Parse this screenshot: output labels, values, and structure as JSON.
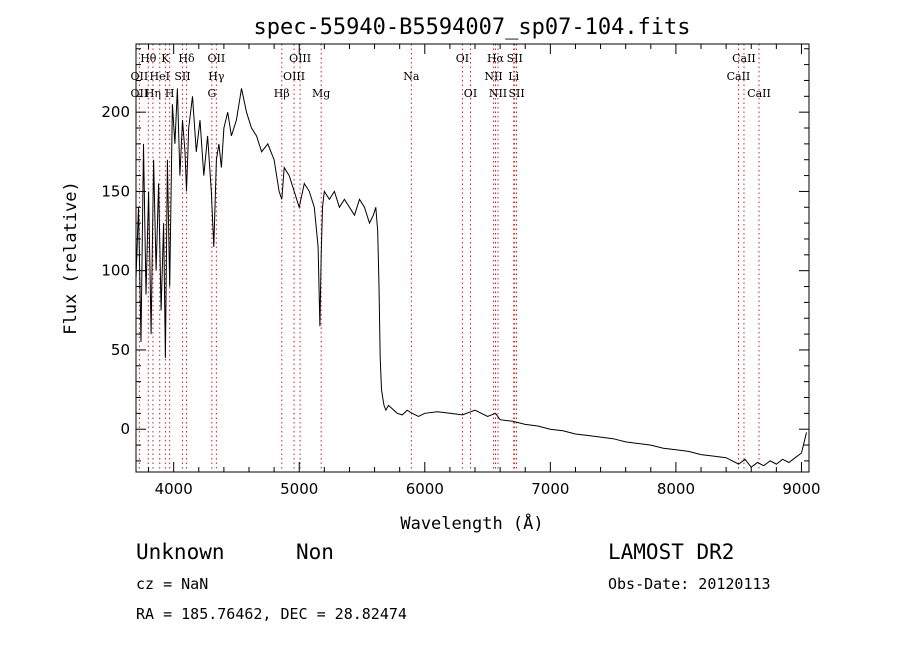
{
  "chart_data": {
    "type": "line",
    "title": "spec-55940-B5594007_sp07-104.fits",
    "xlabel": "Wavelength (Å)",
    "ylabel": "Flux (relative)",
    "xlim": [
      3700,
      9060
    ],
    "ylim": [
      -27,
      243
    ],
    "x_ticks": [
      4000,
      5000,
      6000,
      7000,
      8000,
      9000
    ],
    "y_ticks": [
      0,
      50,
      100,
      150,
      200
    ],
    "x_tick_labels": [
      "4000",
      "5000",
      "6000",
      "7000",
      "8000",
      "9000"
    ],
    "y_tick_labels": [
      "0",
      "50",
      "100",
      "150",
      "200"
    ],
    "grid": false,
    "series": [
      {
        "color": "#000000",
        "x": [
          3700,
          3720,
          3740,
          3760,
          3780,
          3800,
          3820,
          3840,
          3860,
          3880,
          3900,
          3920,
          3934,
          3950,
          3968,
          3990,
          4010,
          4030,
          4050,
          4070,
          4090,
          4102,
          4120,
          4150,
          4180,
          4210,
          4240,
          4270,
          4300,
          4320,
          4340,
          4360,
          4380,
          4400,
          4430,
          4460,
          4500,
          4540,
          4580,
          4620,
          4660,
          4700,
          4750,
          4800,
          4840,
          4861,
          4880,
          4920,
          4960,
          5000,
          5040,
          5080,
          5120,
          5150,
          5165,
          5175,
          5185,
          5200,
          5240,
          5280,
          5320,
          5360,
          5400,
          5440,
          5480,
          5520,
          5560,
          5590,
          5610,
          5625,
          5635,
          5645,
          5655,
          5665,
          5675,
          5690,
          5710,
          5740,
          5780,
          5820,
          5860,
          5900,
          5950,
          6000,
          6100,
          6200,
          6300,
          6400,
          6500,
          6563,
          6600,
          6700,
          6800,
          6900,
          7000,
          7100,
          7200,
          7300,
          7400,
          7500,
          7600,
          7700,
          7800,
          7900,
          8000,
          8100,
          8200,
          8300,
          8400,
          8450,
          8500,
          8550,
          8600,
          8650,
          8700,
          8750,
          8800,
          8850,
          8900,
          8950,
          9000,
          9040
        ],
        "y": [
          95,
          140,
          55,
          180,
          85,
          150,
          60,
          170,
          100,
          155,
          75,
          130,
          45,
          170,
          90,
          205,
          180,
          215,
          160,
          195,
          175,
          150,
          190,
          210,
          175,
          195,
          160,
          185,
          150,
          115,
          170,
          180,
          165,
          190,
          200,
          185,
          195,
          215,
          200,
          190,
          185,
          175,
          180,
          170,
          150,
          145,
          165,
          160,
          150,
          140,
          155,
          150,
          140,
          115,
          65,
          110,
          140,
          150,
          145,
          150,
          140,
          145,
          140,
          135,
          145,
          140,
          130,
          135,
          140,
          125,
          90,
          45,
          25,
          20,
          15,
          12,
          15,
          13,
          10,
          9,
          12,
          10,
          8,
          10,
          11,
          10,
          9,
          12,
          8,
          10,
          6,
          5,
          3,
          2,
          0,
          -1,
          -3,
          -4,
          -5,
          -6,
          -8,
          -9,
          -10,
          -12,
          -13,
          -14,
          -16,
          -17,
          -18,
          -20,
          -22,
          -19,
          -24,
          -21,
          -23,
          -20,
          -22,
          -19,
          -21,
          -18,
          -15,
          -2
        ]
      }
    ],
    "line_labels": [
      {
        "label": "Hθ",
        "x": 3798,
        "row": 0
      },
      {
        "label": "K",
        "x": 3934,
        "row": 0
      },
      {
        "label": "Hδ",
        "x": 4102,
        "row": 0
      },
      {
        "label": "OII",
        "x": 4340,
        "row": 0
      },
      {
        "label": "OIII",
        "x": 5007,
        "row": 0
      },
      {
        "label": "OI",
        "x": 6300,
        "row": 0
      },
      {
        "label": "Hα",
        "x": 6563,
        "row": 0
      },
      {
        "label": "SII",
        "x": 6716,
        "row": 0
      },
      {
        "label": "CaII",
        "x": 8542,
        "row": 0
      },
      {
        "label": "OII",
        "x": 3727,
        "row": 1
      },
      {
        "label": "HeI",
        "x": 3889,
        "row": 1
      },
      {
        "label": "SII",
        "x": 4070,
        "row": 1
      },
      {
        "label": "Hγ",
        "x": 4340,
        "row": 1
      },
      {
        "label": "OIII",
        "x": 4959,
        "row": 1
      },
      {
        "label": "Na",
        "x": 5893,
        "row": 1
      },
      {
        "label": "NII",
        "x": 6548,
        "row": 1
      },
      {
        "label": "Li",
        "x": 6708,
        "row": 1
      },
      {
        "label": "CaII",
        "x": 8498,
        "row": 1
      },
      {
        "label": "OII",
        "x": 3727,
        "row": 2
      },
      {
        "label": "Hη",
        "x": 3835,
        "row": 2
      },
      {
        "label": "H",
        "x": 3968,
        "row": 2
      },
      {
        "label": "G",
        "x": 4304,
        "row": 2
      },
      {
        "label": "Hβ",
        "x": 4861,
        "row": 2
      },
      {
        "label": "Mg",
        "x": 5175,
        "row": 2
      },
      {
        "label": "OI",
        "x": 6364,
        "row": 2
      },
      {
        "label": "NII",
        "x": 6583,
        "row": 2
      },
      {
        "label": "SII",
        "x": 6731,
        "row": 2
      },
      {
        "label": "CaII",
        "x": 8662,
        "row": 2
      }
    ],
    "line_markers": [
      3727,
      3798,
      3835,
      3889,
      3934,
      3968,
      4070,
      4102,
      4304,
      4340,
      4861,
      4959,
      5007,
      5175,
      5893,
      6300,
      6364,
      6548,
      6563,
      6583,
      6708,
      6716,
      6731,
      8498,
      8542,
      8662
    ],
    "line_marker_color": "#d02020"
  },
  "info": {
    "class_text": "Unknown",
    "subclass_text": "Non",
    "survey": "LAMOST DR2",
    "cz": "cz = NaN",
    "obs_date": "Obs-Date: 20120113",
    "coords": "RA = 185.76462, DEC =  28.82474"
  }
}
